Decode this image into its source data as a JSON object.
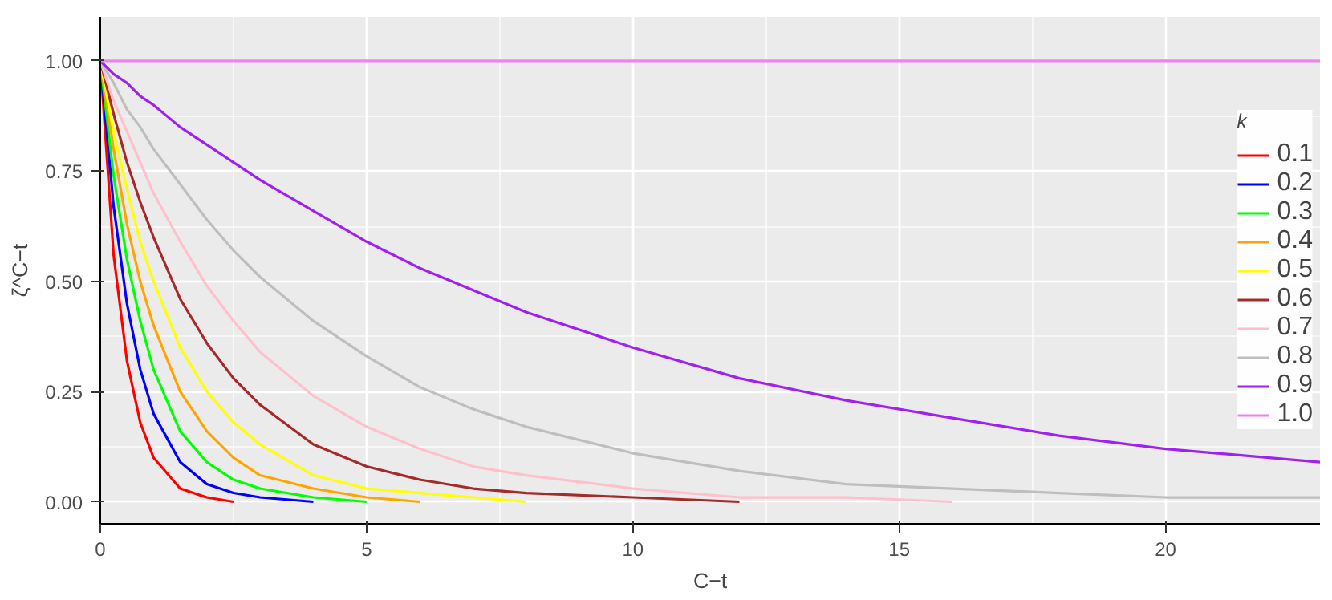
{
  "chart_data": {
    "type": "line",
    "xlabel": "C−t",
    "ylabel": "ζ^C−t",
    "legend_title": "k",
    "x": [
      0,
      0.25,
      0.5,
      0.75,
      1,
      1.5,
      2,
      2.5,
      3,
      4,
      5,
      6,
      7,
      8,
      10,
      12,
      14,
      16,
      18,
      20,
      22.9
    ],
    "series": [
      {
        "name": "0.1",
        "color": "#ff0000",
        "values": [
          1,
          0.56,
          0.32,
          0.18,
          0.1,
          0.03,
          0.01,
          0,
          null,
          null,
          null,
          null,
          null,
          null,
          null,
          null,
          null,
          null,
          null,
          null,
          null
        ]
      },
      {
        "name": "0.2",
        "color": "#0000ff",
        "values": [
          1,
          0.67,
          0.45,
          0.3,
          0.2,
          0.09,
          0.04,
          0.02,
          0.01,
          0,
          null,
          null,
          null,
          null,
          null,
          null,
          null,
          null,
          null,
          null,
          null
        ]
      },
      {
        "name": "0.3",
        "color": "#00ff00",
        "values": [
          1,
          0.74,
          0.55,
          0.41,
          0.3,
          0.16,
          0.09,
          0.05,
          0.03,
          0.01,
          0,
          null,
          null,
          null,
          null,
          null,
          null,
          null,
          null,
          null,
          null
        ]
      },
      {
        "name": "0.4",
        "color": "#ffa500",
        "values": [
          1,
          0.8,
          0.63,
          0.5,
          0.4,
          0.25,
          0.16,
          0.1,
          0.06,
          0.03,
          0.01,
          0,
          null,
          null,
          null,
          null,
          null,
          null,
          null,
          null,
          null
        ]
      },
      {
        "name": "0.5",
        "color": "#ffff00",
        "values": [
          1,
          0.84,
          0.71,
          0.59,
          0.5,
          0.35,
          0.25,
          0.18,
          0.13,
          0.06,
          0.03,
          0.02,
          0.01,
          0,
          null,
          null,
          null,
          null,
          null,
          null,
          null
        ]
      },
      {
        "name": "0.6",
        "color": "#a52a2a",
        "values": [
          1,
          0.88,
          0.77,
          0.68,
          0.6,
          0.46,
          0.36,
          0.28,
          0.22,
          0.13,
          0.08,
          0.05,
          0.03,
          0.02,
          0.01,
          0,
          null,
          null,
          null,
          null,
          null
        ]
      },
      {
        "name": "0.7",
        "color": "#ffc0cb",
        "values": [
          1,
          0.91,
          0.84,
          0.77,
          0.7,
          0.59,
          0.49,
          0.41,
          0.34,
          0.24,
          0.17,
          0.12,
          0.08,
          0.06,
          0.03,
          0.01,
          0.01,
          0,
          null,
          null,
          null
        ]
      },
      {
        "name": "0.8",
        "color": "#bebebe",
        "values": [
          1,
          0.95,
          0.89,
          0.85,
          0.8,
          0.72,
          0.64,
          0.57,
          0.51,
          0.41,
          0.33,
          0.26,
          0.21,
          0.17,
          0.11,
          0.07,
          0.04,
          0.03,
          0.02,
          0.01,
          0.01
        ]
      },
      {
        "name": "0.9",
        "color": "#a020f0",
        "values": [
          1,
          0.97,
          0.95,
          0.92,
          0.9,
          0.85,
          0.81,
          0.77,
          0.73,
          0.66,
          0.59,
          0.53,
          0.48,
          0.43,
          0.35,
          0.28,
          0.23,
          0.19,
          0.15,
          0.12,
          0.09
        ]
      },
      {
        "name": "1.0",
        "color": "#ee82ee",
        "values": [
          1,
          1,
          1,
          1,
          1,
          1,
          1,
          1,
          1,
          1,
          1,
          1,
          1,
          1,
          1,
          1,
          1,
          1,
          1,
          1,
          1
        ]
      }
    ],
    "xlim": [
      0,
      22.9
    ],
    "ylim": [
      -0.05,
      1.1
    ],
    "xticks": [
      0,
      5,
      10,
      15,
      20
    ],
    "yticks": [
      {
        "value": 0,
        "label": "0.00"
      },
      {
        "value": 0.25,
        "label": "0.25"
      },
      {
        "value": 0.5,
        "label": "0.50"
      },
      {
        "value": 0.75,
        "label": "0.75"
      },
      {
        "value": 1,
        "label": "1.00"
      }
    ],
    "grid": true,
    "legend": "right",
    "line_style": "solid",
    "marker": "none"
  }
}
